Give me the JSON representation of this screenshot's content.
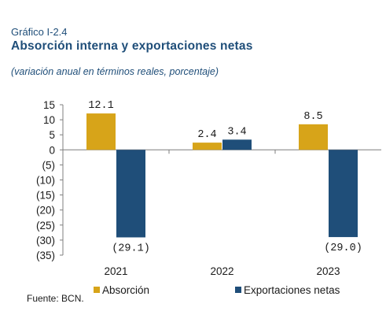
{
  "header": {
    "label": "Gráfico I-2.4",
    "title": "Absorción interna y exportaciones netas",
    "subtitle": "(variación anual en términos reales, porcentaje)"
  },
  "footer": {
    "source": "Fuente: BCN."
  },
  "colors": {
    "absorcion": "#D7A419",
    "exportaciones": "#1F4E79",
    "axis": "#7f7f7f"
  },
  "chart_data": {
    "type": "bar",
    "categories": [
      "2021",
      "2022",
      "2023"
    ],
    "series": [
      {
        "name": "Absorción",
        "values": [
          12.1,
          2.4,
          8.5
        ],
        "labels": [
          "12.1",
          "2.4",
          "8.5"
        ]
      },
      {
        "name": "Exportaciones netas",
        "values": [
          -29.1,
          3.4,
          -29.0
        ],
        "labels": [
          "(29.1)",
          "3.4",
          "(29.0)"
        ]
      }
    ],
    "ylim": [
      -35,
      15
    ],
    "yticks": [
      15,
      10,
      5,
      0,
      -5,
      -10,
      -15,
      -20,
      -25,
      -30,
      -35
    ],
    "ytick_labels": [
      "15",
      "10",
      "5",
      "0",
      "(5)",
      "(10)",
      "(15)",
      "(20)",
      "(25)",
      "(30)",
      "(35)"
    ],
    "grid": false,
    "legend": "bottom"
  }
}
